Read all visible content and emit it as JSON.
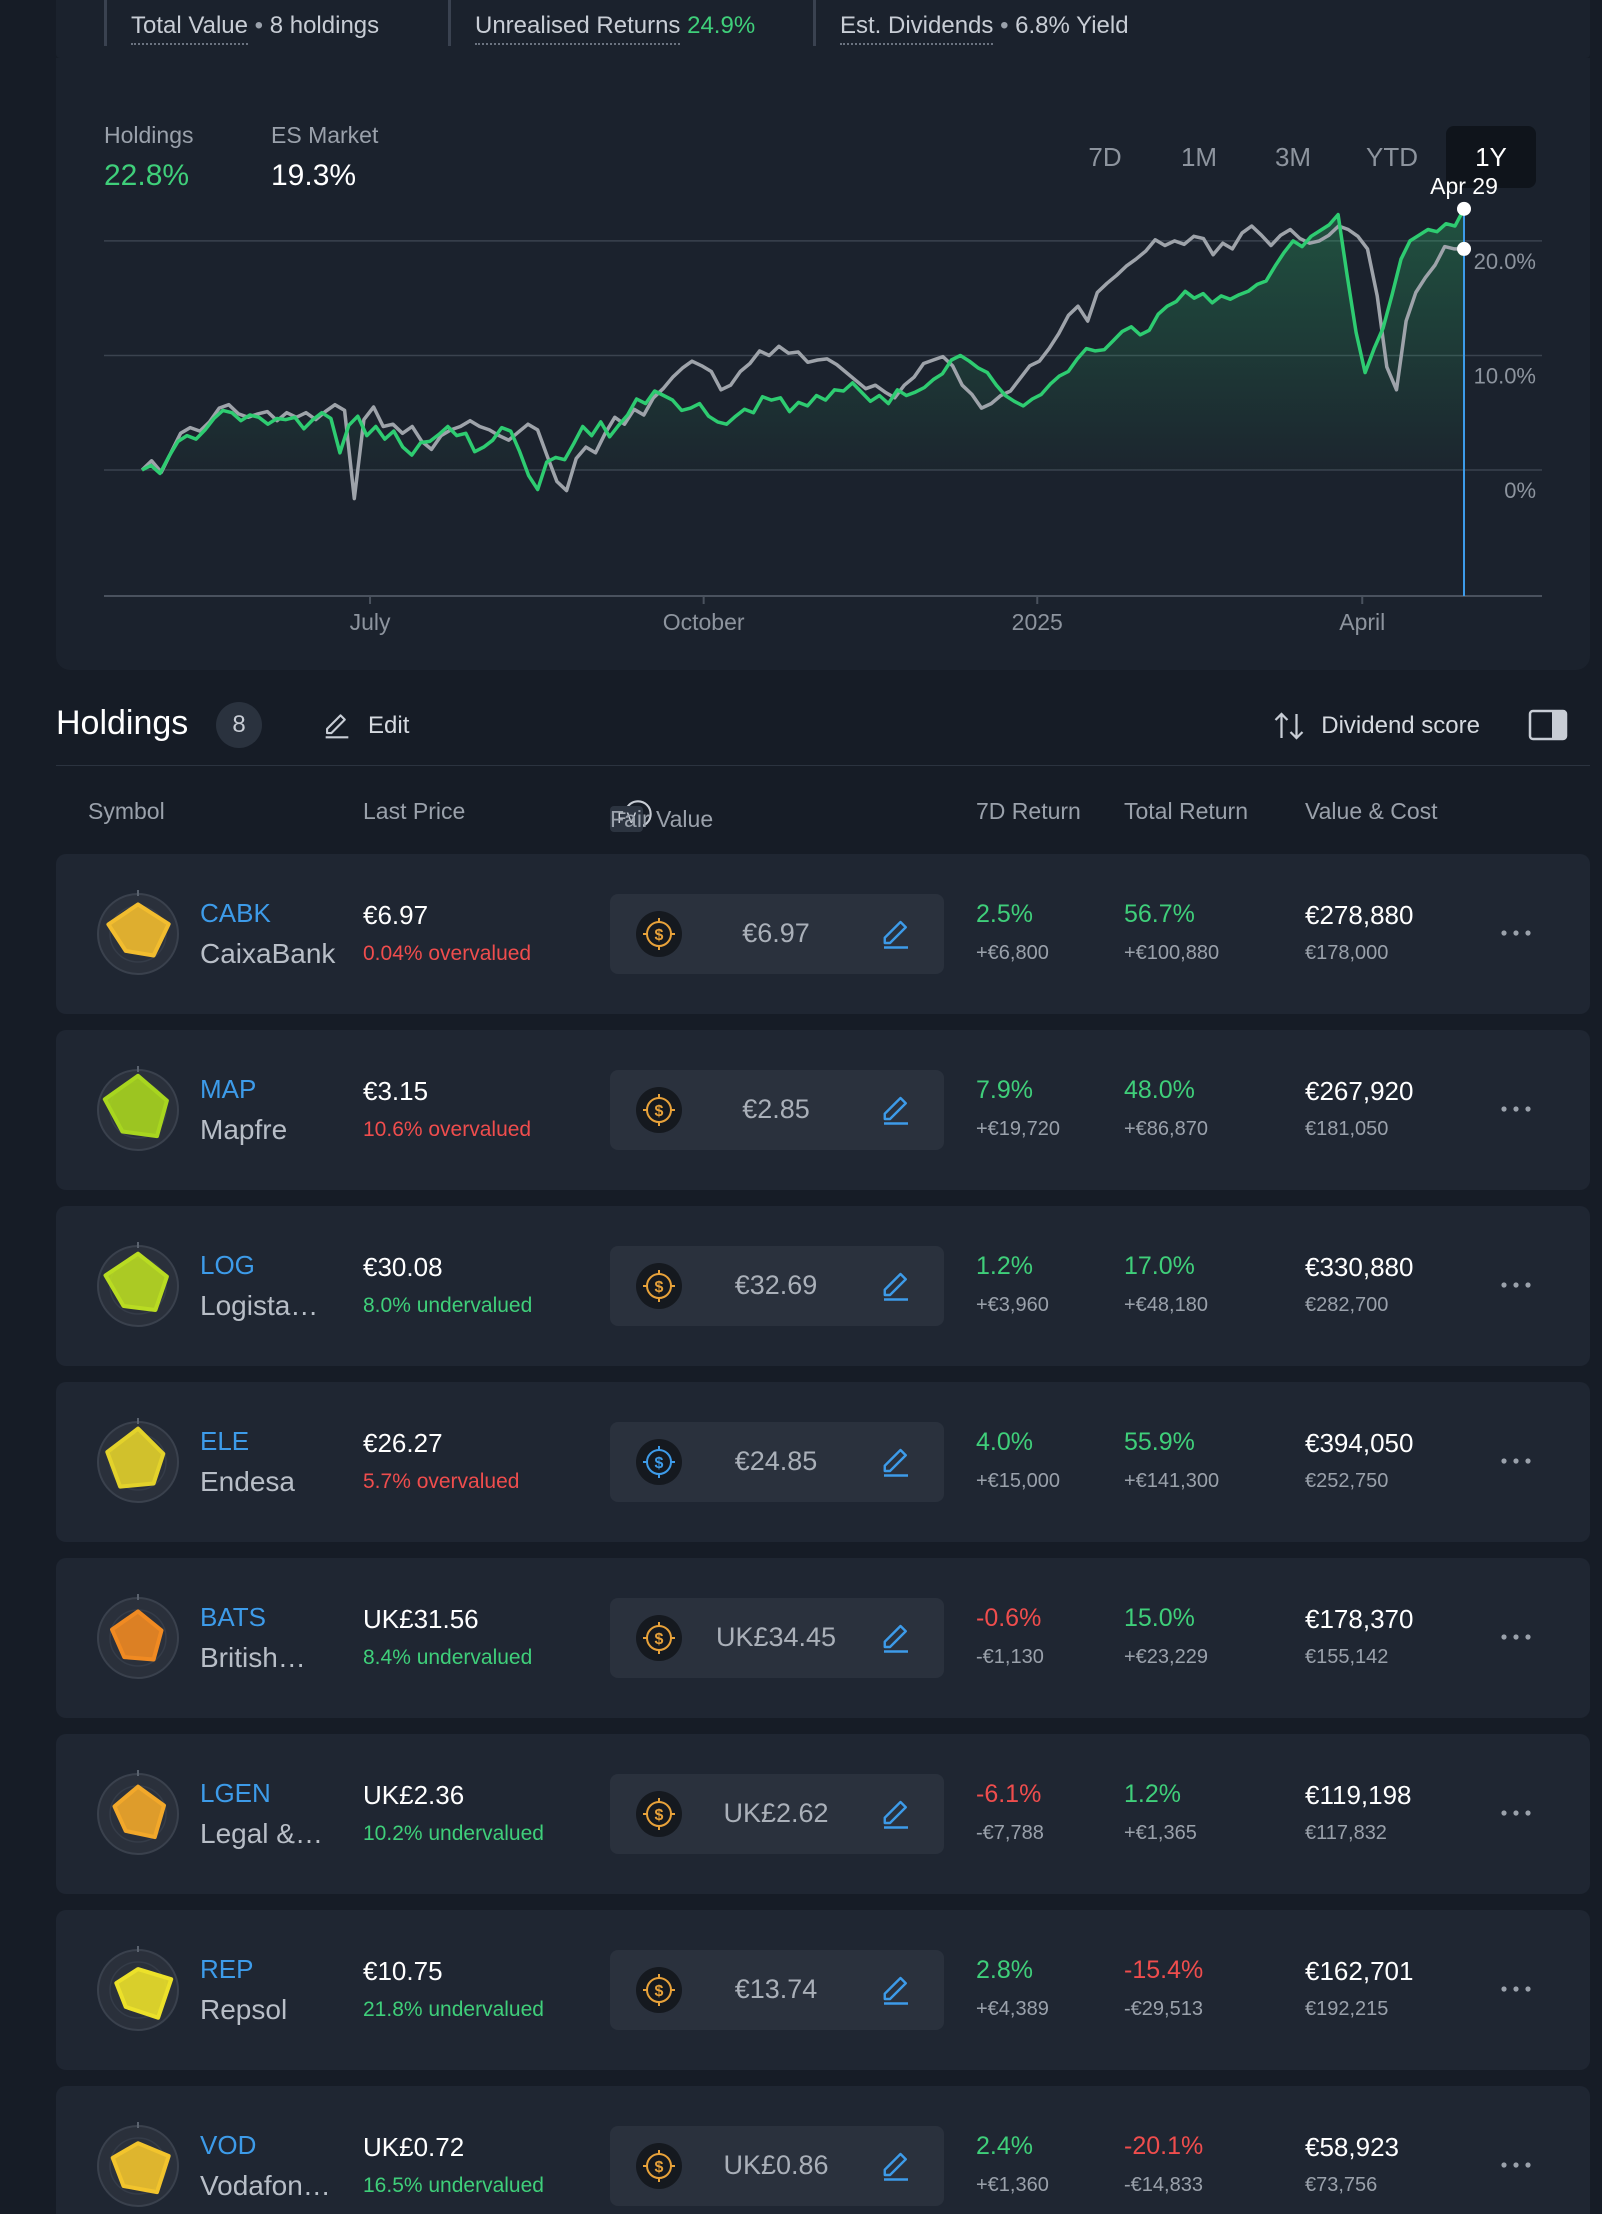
{
  "summary": {
    "total_value_label": "Total Value",
    "holdings_count_text": "8 holdings",
    "unrealised_label": "Unrealised Returns",
    "unrealised_value": "24.9%",
    "dividends_label": "Est. Dividends",
    "dividends_yield": "6.8% Yield"
  },
  "performance": {
    "holdings_label": "Holdings",
    "holdings_value": "22.8%",
    "market_label": "ES Market",
    "market_value": "19.3%",
    "ranges": [
      "7D",
      "1M",
      "3M",
      "YTD",
      "1Y"
    ],
    "active_range": "1Y"
  },
  "chart_data": {
    "type": "line",
    "y_ticks": [
      "20.0%",
      "10.0%",
      "0%"
    ],
    "y_tick_values": [
      20,
      10,
      0
    ],
    "x_tick_labels": [
      "July",
      "October",
      "2025",
      "April"
    ],
    "x_tick_positions": [
      0.185,
      0.417,
      0.649,
      0.875
    ],
    "ylim": [
      -11,
      22
    ],
    "hover_label": "Apr 29",
    "series": [
      {
        "color": "#2ecc71",
        "values": [
          0.0,
          0.4,
          -0.3,
          1.2,
          2.5,
          3.0,
          2.7,
          3.5,
          4.5,
          5.2,
          5.0,
          4.3,
          4.8,
          4.6,
          4.0,
          4.5,
          4.4,
          4.6,
          3.6,
          4.4,
          5.0,
          4.5,
          1.5,
          3.9,
          4.7,
          3.0,
          3.8,
          2.7,
          3.4,
          2.0,
          1.3,
          2.4,
          2.5,
          3.1,
          3.8,
          3.0,
          3.2,
          1.6,
          2.0,
          2.6,
          3.7,
          3.4,
          1.6,
          -0.5,
          -1.7,
          0.7,
          1.1,
          0.9,
          2.3,
          3.8,
          3.0,
          4.2,
          2.9,
          3.9,
          4.8,
          6.2,
          5.8,
          6.9,
          6.5,
          6.1,
          5.2,
          5.4,
          5.8,
          4.7,
          4.2,
          4.0,
          4.7,
          5.3,
          5.0,
          6.4,
          6.1,
          6.3,
          5.1,
          5.9,
          5.6,
          6.5,
          6.1,
          7.0,
          6.9,
          7.6,
          6.8,
          6.0,
          6.5,
          5.8,
          7.0,
          6.5,
          6.8,
          7.2,
          7.9,
          8.4,
          9.6,
          10.0,
          9.5,
          8.9,
          8.5,
          7.4,
          6.5,
          6.0,
          5.6,
          6.2,
          6.6,
          7.5,
          8.2,
          8.6,
          9.7,
          10.6,
          10.4,
          10.5,
          11.3,
          12.1,
          12.5,
          11.8,
          12.2,
          13.6,
          14.3,
          14.7,
          15.6,
          15.0,
          15.4,
          14.6,
          15.2,
          14.9,
          15.3,
          15.6,
          16.2,
          16.5,
          17.8,
          19.0,
          20.0,
          19.5,
          20.4,
          20.9,
          21.4,
          22.3,
          17.0,
          12.0,
          8.5,
          10.6,
          12.4,
          15.3,
          18.4,
          20.0,
          20.5,
          21.0,
          20.8,
          21.5,
          21.3,
          22.8
        ]
      },
      {
        "color": "#9ea3aa",
        "values": [
          0.0,
          0.8,
          -0.2,
          1.5,
          3.2,
          3.7,
          3.4,
          4.2,
          5.4,
          5.7,
          4.9,
          4.6,
          4.9,
          5.1,
          4.3,
          5.0,
          4.6,
          5.0,
          4.4,
          5.1,
          5.7,
          5.2,
          -2.5,
          4.4,
          5.5,
          3.8,
          4.0,
          3.2,
          3.8,
          2.5,
          1.8,
          3.0,
          3.5,
          3.8,
          4.3,
          3.8,
          3.5,
          3.0,
          2.6,
          3.3,
          4.0,
          3.5,
          1.2,
          -1.0,
          -1.8,
          1.0,
          2.0,
          1.5,
          3.2,
          4.6,
          4.0,
          5.3,
          4.8,
          6.3,
          7.1,
          8.1,
          8.9,
          9.5,
          9.1,
          8.6,
          7.0,
          7.4,
          8.6,
          9.3,
          10.4,
          10.0,
          10.8,
          10.2,
          10.3,
          9.4,
          9.6,
          9.7,
          9.2,
          8.5,
          7.8,
          7.1,
          7.4,
          6.8,
          6.3,
          7.4,
          8.1,
          9.3,
          9.6,
          9.9,
          9.1,
          7.4,
          6.6,
          5.4,
          5.8,
          6.5,
          6.9,
          8.0,
          9.1,
          9.5,
          10.6,
          11.9,
          13.5,
          14.3,
          13.0,
          15.5,
          16.3,
          17.0,
          17.8,
          18.4,
          19.1,
          20.1,
          19.6,
          20.0,
          19.7,
          20.4,
          20.2,
          18.8,
          19.8,
          19.3,
          20.7,
          21.3,
          20.5,
          19.6,
          20.5,
          21.0,
          20.2,
          19.8,
          20.0,
          20.5,
          21.3,
          21.0,
          20.4,
          19.3,
          15.2,
          9.0,
          7.0,
          13.0,
          15.5,
          16.8,
          17.9,
          19.5,
          19.3,
          19.3
        ]
      }
    ]
  },
  "holdings_header": {
    "title": "Holdings",
    "count": "8",
    "edit_label": "Edit",
    "sort_label": "Dividend score"
  },
  "columns": {
    "symbol": "Symbol",
    "last_price": "Last Price",
    "fv_badge": "FV",
    "fair_value": "Fair Value",
    "return_7d": "7D Return",
    "total_return": "Total Return",
    "value_cost": "Value & Cost"
  },
  "holdings": [
    {
      "symbol": "CABK",
      "name": "CaixaBank",
      "price": "€6.97",
      "valuation": "0.04% overvalued",
      "valuation_status": "over",
      "fair_value": "€6.97",
      "coin_color": "#e8a23a",
      "r7": "2.5%",
      "r7_sub": "+€6,800",
      "r7_status": "pos",
      "rt": "56.7%",
      "rt_sub": "+€100,880",
      "rt_status": "pos",
      "value": "€278,880",
      "cost": "€178,000",
      "snowflake_color": "#f2bd2f"
    },
    {
      "symbol": "MAP",
      "name": "Mapfre",
      "price": "€3.15",
      "valuation": "10.6% overvalued",
      "valuation_status": "over",
      "fair_value": "€2.85",
      "coin_color": "#e8a23a",
      "r7": "7.9%",
      "r7_sub": "+€19,720",
      "r7_status": "pos",
      "rt": "48.0%",
      "rt_sub": "+€86,870",
      "rt_status": "pos",
      "value": "€267,920",
      "cost": "€181,050",
      "snowflake_color": "#a8d61f"
    },
    {
      "symbol": "LOG",
      "name": "Logista…",
      "price": "€30.08",
      "valuation": "8.0% undervalued",
      "valuation_status": "under",
      "fair_value": "€32.69",
      "coin_color": "#e8a23a",
      "r7": "1.2%",
      "r7_sub": "+€3,960",
      "r7_status": "pos",
      "rt": "17.0%",
      "rt_sub": "+€48,180",
      "rt_status": "pos",
      "value": "€330,880",
      "cost": "€282,700",
      "snowflake_color": "#b9dc22"
    },
    {
      "symbol": "ELE",
      "name": "Endesa",
      "price": "€26.27",
      "valuation": "5.7% overvalued",
      "valuation_status": "over",
      "fair_value": "€24.85",
      "coin_color": "#3d9be9",
      "r7": "4.0%",
      "r7_sub": "+€15,000",
      "r7_status": "pos",
      "rt": "55.9%",
      "rt_sub": "+€141,300",
      "rt_status": "pos",
      "value": "€394,050",
      "cost": "€252,750",
      "snowflake_color": "#e3d22b"
    },
    {
      "symbol": "BATS",
      "name": "British…",
      "price": "UK£31.56",
      "valuation": "8.4% undervalued",
      "valuation_status": "under",
      "fair_value": "UK£34.45",
      "coin_color": "#e8a23a",
      "r7": "-0.6%",
      "r7_sub": "-€1,130",
      "r7_status": "neg",
      "rt": "15.0%",
      "rt_sub": "+€23,229",
      "rt_status": "pos",
      "value": "€178,370",
      "cost": "€155,142",
      "snowflake_color": "#f08a22"
    },
    {
      "symbol": "LGEN",
      "name": "Legal &…",
      "price": "UK£2.36",
      "valuation": "10.2% undervalued",
      "valuation_status": "under",
      "fair_value": "UK£2.62",
      "coin_color": "#e8a23a",
      "r7": "-6.1%",
      "r7_sub": "-€7,788",
      "r7_status": "neg",
      "rt": "1.2%",
      "rt_sub": "+€1,365",
      "rt_status": "pos",
      "value": "€119,198",
      "cost": "€117,832",
      "snowflake_color": "#f2a82a"
    },
    {
      "symbol": "REP",
      "name": "Repsol",
      "price": "€10.75",
      "valuation": "21.8% undervalued",
      "valuation_status": "under",
      "fair_value": "€13.74",
      "coin_color": "#e8a23a",
      "r7": "2.8%",
      "r7_sub": "+€4,389",
      "r7_status": "pos",
      "rt": "-15.4%",
      "rt_sub": "-€29,513",
      "rt_status": "neg",
      "value": "€162,701",
      "cost": "€192,215",
      "snowflake_color": "#ece12a"
    },
    {
      "symbol": "VOD",
      "name": "Vodafon…",
      "price": "UK£0.72",
      "valuation": "16.5% undervalued",
      "valuation_status": "under",
      "fair_value": "UK£0.86",
      "coin_color": "#e8a23a",
      "r7": "2.4%",
      "r7_sub": "+€1,360",
      "r7_status": "pos",
      "rt": "-20.1%",
      "rt_sub": "-€14,833",
      "rt_status": "neg",
      "value": "€58,923",
      "cost": "€73,756",
      "snowflake_color": "#f2c42d"
    }
  ]
}
